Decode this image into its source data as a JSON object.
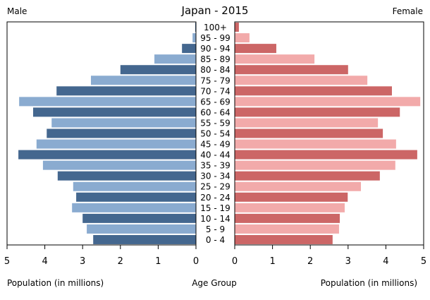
{
  "chart_data": {
    "type": "bar",
    "subtype": "population-pyramid",
    "title": "Japan - 2015",
    "left_label": "Male",
    "right_label": "Female",
    "xlabel_left": "Population (in millions)",
    "xlabel_center": "Age Group",
    "xlabel_right": "Population (in millions)",
    "xlim": [
      0,
      5
    ],
    "xticks": [
      "0",
      "1",
      "2",
      "3",
      "4",
      "5"
    ],
    "grid": false,
    "categories": [
      "0 - 4",
      "5 - 9",
      "10 - 14",
      "15 - 19",
      "20 - 24",
      "25 - 29",
      "30 - 34",
      "35 - 39",
      "40 - 44",
      "45 - 49",
      "50 - 54",
      "55 - 59",
      "60 - 64",
      "65 - 69",
      "70 - 74",
      "75 - 79",
      "80 - 84",
      "85 - 89",
      "90 - 94",
      "95 - 99",
      "100+"
    ],
    "series": [
      {
        "name": "Male",
        "values": [
          2.72,
          2.89,
          3.0,
          3.28,
          3.17,
          3.25,
          3.66,
          4.05,
          4.7,
          4.22,
          3.95,
          3.82,
          4.31,
          4.68,
          3.69,
          2.78,
          2.0,
          1.1,
          0.37,
          0.09,
          0.02
        ]
      },
      {
        "name": "Female",
        "values": [
          2.59,
          2.76,
          2.78,
          2.91,
          2.99,
          3.34,
          3.84,
          4.25,
          4.83,
          4.27,
          3.92,
          3.79,
          4.37,
          4.91,
          4.16,
          3.51,
          3.0,
          2.11,
          1.1,
          0.39,
          0.11
        ]
      }
    ],
    "colors": {
      "male_dark": "#44678f",
      "male_light": "#8aabd0",
      "female_dark": "#cc6666",
      "female_light": "#f2aaaa"
    }
  }
}
